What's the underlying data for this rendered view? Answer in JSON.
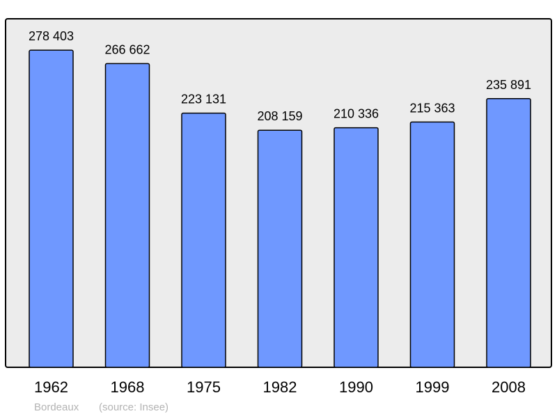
{
  "chart_data": {
    "type": "bar",
    "title": "",
    "xlabel": "",
    "ylabel": "",
    "categories": [
      "1962",
      "1968",
      "1975",
      "1982",
      "1990",
      "1999",
      "2008"
    ],
    "values": [
      278403,
      266662,
      223131,
      208159,
      210336,
      215363,
      235891
    ],
    "value_labels": [
      "278 403",
      "266 662",
      "223 131",
      "208 159",
      "210 336",
      "215 363",
      "235 891"
    ],
    "ylim": [
      0,
      306000
    ],
    "grid": false,
    "colors": {
      "bar": "#6f98ff",
      "plot_background": "#ececec",
      "border": "#000000",
      "footer_text": "#b3b3b3"
    }
  },
  "footer": {
    "place": "Bordeaux",
    "source": "(source: Insee)"
  }
}
